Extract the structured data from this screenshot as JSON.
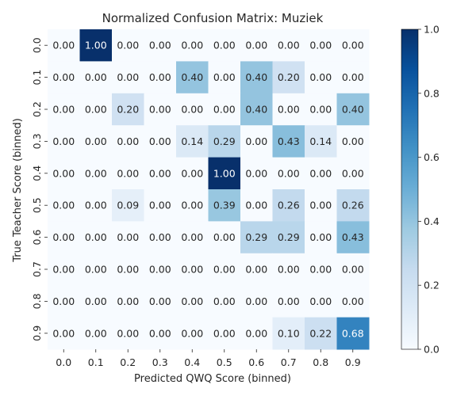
{
  "chart_data": {
    "type": "heatmap",
    "title": "Normalized Confusion Matrix: Muziek",
    "xlabel": "Predicted QWQ Score (binned)",
    "ylabel": "True Teacher Score (binned)",
    "x_labels": [
      "0.0",
      "0.1",
      "0.2",
      "0.3",
      "0.4",
      "0.5",
      "0.6",
      "0.7",
      "0.8",
      "0.9"
    ],
    "y_labels": [
      "0.0",
      "0.1",
      "0.2",
      "0.3",
      "0.4",
      "0.5",
      "0.6",
      "0.7",
      "0.8",
      "0.9"
    ],
    "values": [
      [
        0.0,
        1.0,
        0.0,
        0.0,
        0.0,
        0.0,
        0.0,
        0.0,
        0.0,
        0.0
      ],
      [
        0.0,
        0.0,
        0.0,
        0.0,
        0.4,
        0.0,
        0.4,
        0.2,
        0.0,
        0.0
      ],
      [
        0.0,
        0.0,
        0.2,
        0.0,
        0.0,
        0.0,
        0.4,
        0.0,
        0.0,
        0.4
      ],
      [
        0.0,
        0.0,
        0.0,
        0.0,
        0.14,
        0.29,
        0.0,
        0.43,
        0.14,
        0.0
      ],
      [
        0.0,
        0.0,
        0.0,
        0.0,
        0.0,
        1.0,
        0.0,
        0.0,
        0.0,
        0.0
      ],
      [
        0.0,
        0.0,
        0.09,
        0.0,
        0.0,
        0.39,
        0.0,
        0.26,
        0.0,
        0.26
      ],
      [
        0.0,
        0.0,
        0.0,
        0.0,
        0.0,
        0.0,
        0.29,
        0.29,
        0.0,
        0.43
      ],
      [
        0.0,
        0.0,
        0.0,
        0.0,
        0.0,
        0.0,
        0.0,
        0.0,
        0.0,
        0.0
      ],
      [
        0.0,
        0.0,
        0.0,
        0.0,
        0.0,
        0.0,
        0.0,
        0.0,
        0.0,
        0.0
      ],
      [
        0.0,
        0.0,
        0.0,
        0.0,
        0.0,
        0.0,
        0.0,
        0.1,
        0.22,
        0.68
      ]
    ],
    "value_format": "2-decimal",
    "colormap": "Blues",
    "colorbar": {
      "range": [
        0.0,
        1.0
      ],
      "ticks": [
        "0.0",
        "0.2",
        "0.4",
        "0.6",
        "0.8",
        "1.0"
      ]
    },
    "grid": false
  }
}
